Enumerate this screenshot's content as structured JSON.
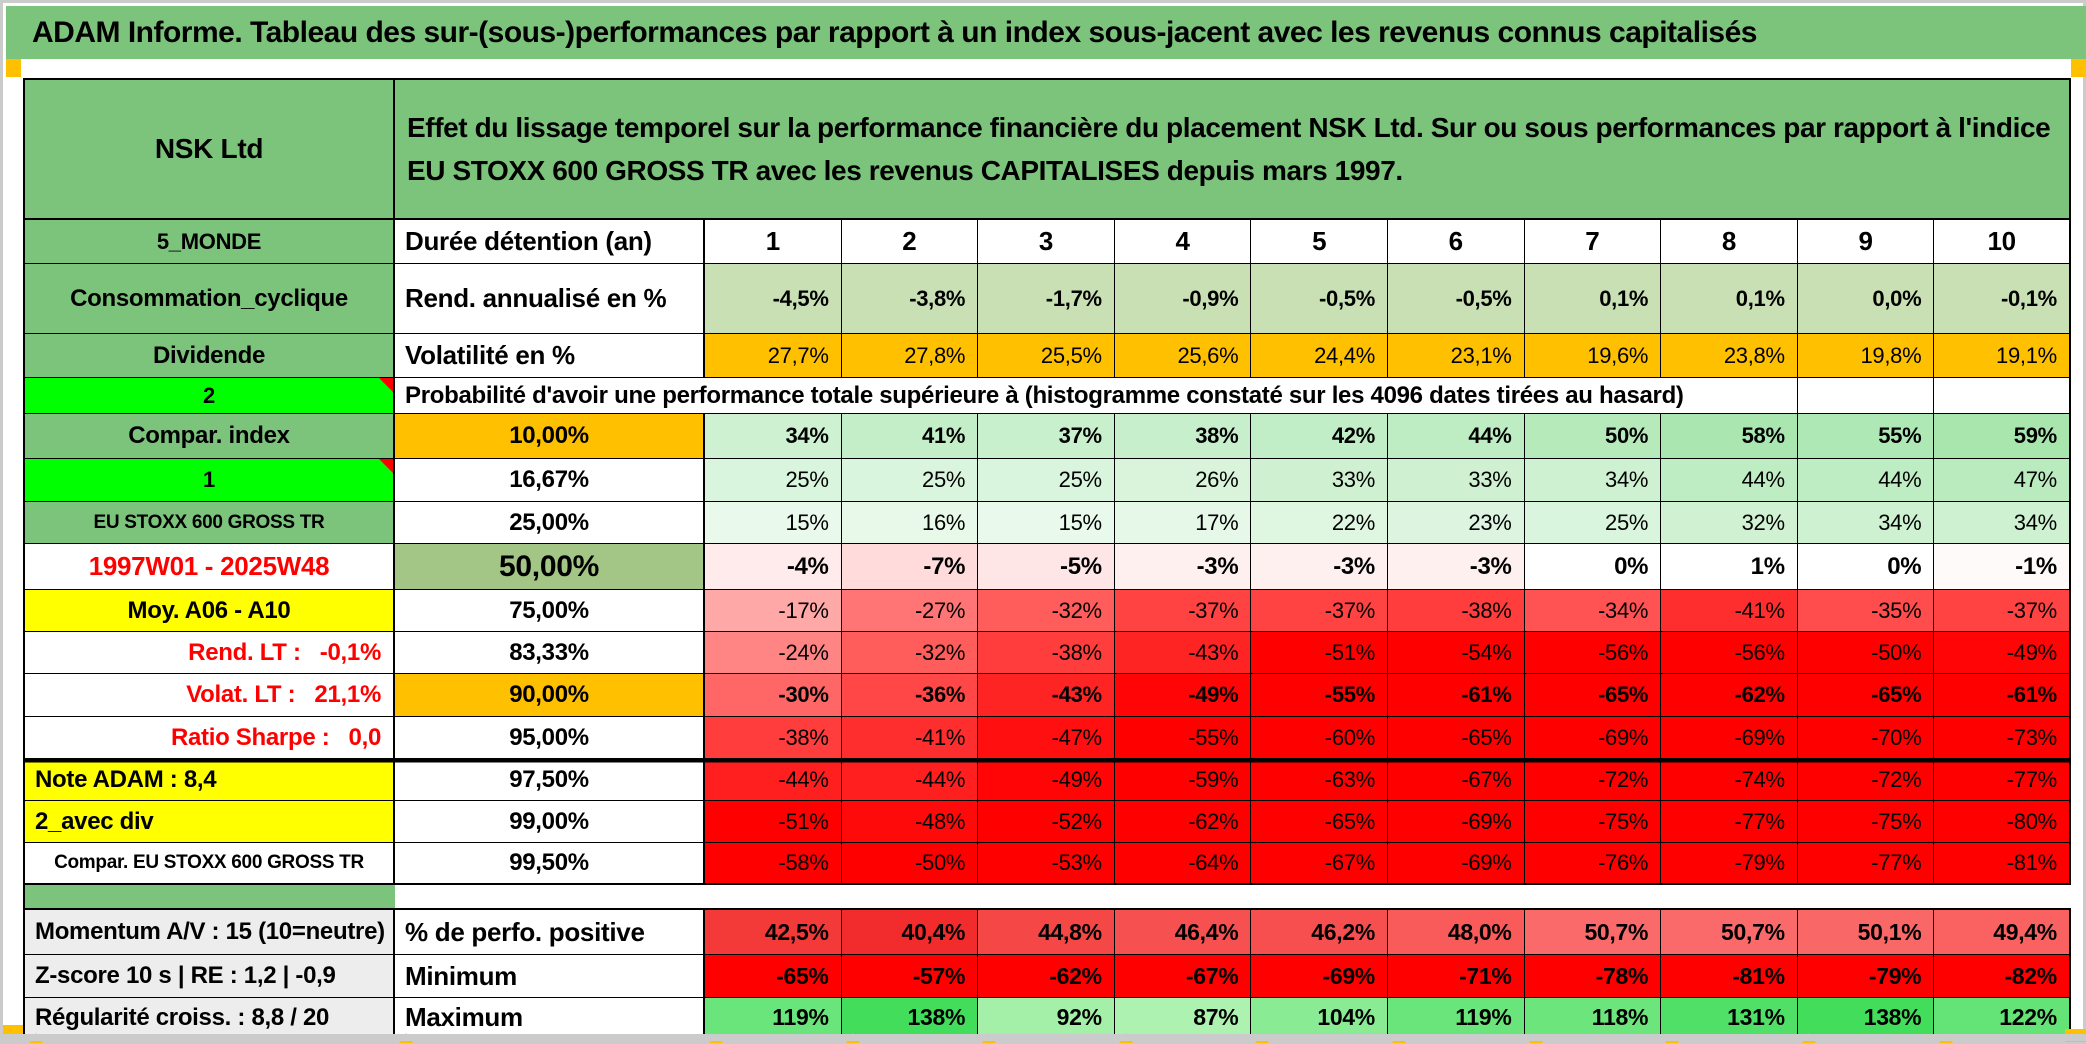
{
  "app": {
    "title": "ADAM Informe. Tableau des sur-(sous-)performances par rapport à un index sous-jacent avec les revenus connus capitalisés"
  },
  "header": {
    "instrument": "NSK Ltd",
    "description": "Effet du lissage temporel sur la performance financière du placement NSK Ltd. Sur ou sous performances par rapport à l'indice EU STOXX 600 GROSS TR avec les revenus CAPITALISES depuis mars 1997."
  },
  "palette": {
    "header_green": "#7CC47C",
    "bright_green": "#00FF00",
    "olive_green": "#A3C585",
    "light_green": "#C8E0B4",
    "orange": "#FFC000",
    "yellow": "#FFFF00",
    "red": "#FF0000",
    "label_gray": "#EDEDED",
    "red_text": "#FF0000"
  },
  "table": {
    "duration": {
      "label_a": "5_MONDE",
      "label_b": "Durée détention (an)",
      "values": [
        "1",
        "2",
        "3",
        "4",
        "5",
        "6",
        "7",
        "8",
        "9",
        "10"
      ]
    },
    "metrics": [
      {
        "label_a": "Consommation_cyclique",
        "label_b": "Rend. annualisé en %",
        "fill": "light_green",
        "bold": true,
        "values": [
          "-4,5%",
          "-3,8%",
          "-1,7%",
          "-0,9%",
          "-0,5%",
          "-0,5%",
          "0,1%",
          "0,1%",
          "0,0%",
          "-0,1%"
        ]
      },
      {
        "label_a": "Dividende",
        "label_b": "Volatilité en %",
        "fill": "orange",
        "bold": false,
        "values": [
          "27,7%",
          "27,8%",
          "25,5%",
          "25,6%",
          "24,4%",
          "23,1%",
          "19,6%",
          "23,8%",
          "19,8%",
          "19,1%"
        ]
      }
    ],
    "probability_header": {
      "label_a": "2",
      "has_comment": true,
      "text": "Probabilité d'avoir une performance totale supérieure à (histogramme constaté sur les 4096 dates tirées au hasard)"
    },
    "probability_rows": [
      {
        "label_a": "Compar. index",
        "a_style": "green",
        "percentile": "10,00%",
        "p_fill": "orange",
        "bold": true,
        "values": [
          "34%",
          "41%",
          "37%",
          "38%",
          "42%",
          "44%",
          "50%",
          "58%",
          "55%",
          "59%"
        ]
      },
      {
        "label_a": "1",
        "a_style": "bright_green",
        "has_comment": true,
        "percentile": "16,67%",
        "values": [
          "25%",
          "25%",
          "25%",
          "26%",
          "33%",
          "33%",
          "34%",
          "44%",
          "44%",
          "47%"
        ]
      },
      {
        "label_a": "EU STOXX 600 GROSS TR",
        "a_style": "green_small",
        "percentile": "25,00%",
        "values": [
          "15%",
          "16%",
          "15%",
          "17%",
          "22%",
          "23%",
          "25%",
          "32%",
          "34%",
          "34%"
        ]
      },
      {
        "label_a": "1997W01 - 2025W48",
        "a_style": "red_center",
        "percentile": "50,00%",
        "p_fill": "olive_green",
        "p_big": true,
        "bold": true,
        "values": [
          "-4%",
          "-7%",
          "-5%",
          "-3%",
          "-3%",
          "-3%",
          "0%",
          "1%",
          "0%",
          "-1%"
        ]
      },
      {
        "label_a": "Moy. A06 - A10",
        "a_style": "yellow_center",
        "percentile": "75,00%",
        "values": [
          "-17%",
          "-27%",
          "-32%",
          "-37%",
          "-37%",
          "-38%",
          "-34%",
          "-41%",
          "-35%",
          "-37%"
        ]
      },
      {
        "label_a": "Rend. LT :   -0,1%",
        "a_style": "red_right",
        "percentile": "83,33%",
        "values": [
          "-24%",
          "-32%",
          "-38%",
          "-43%",
          "-51%",
          "-54%",
          "-56%",
          "-56%",
          "-50%",
          "-49%"
        ]
      },
      {
        "label_a": "Volat. LT :   21,1%",
        "a_style": "red_right",
        "percentile": "90,00%",
        "p_fill": "orange",
        "bold": true,
        "values": [
          "-30%",
          "-36%",
          "-43%",
          "-49%",
          "-55%",
          "-61%",
          "-65%",
          "-62%",
          "-65%",
          "-61%"
        ]
      },
      {
        "label_a": "Ratio Sharpe :   0,0",
        "a_style": "red_right",
        "percentile": "95,00%",
        "values": [
          "-38%",
          "-41%",
          "-47%",
          "-55%",
          "-60%",
          "-65%",
          "-69%",
          "-69%",
          "-70%",
          "-73%"
        ]
      },
      {
        "label_a": "Note ADAM : 8,4",
        "a_style": "yellow_left",
        "percentile": "97,50%",
        "thick_top": true,
        "values": [
          "-44%",
          "-44%",
          "-49%",
          "-59%",
          "-63%",
          "-67%",
          "-72%",
          "-74%",
          "-72%",
          "-77%"
        ]
      },
      {
        "label_a": "2_avec div",
        "a_style": "yellow_left",
        "percentile": "99,00%",
        "values": [
          "-51%",
          "-48%",
          "-52%",
          "-62%",
          "-65%",
          "-69%",
          "-75%",
          "-77%",
          "-75%",
          "-80%"
        ]
      },
      {
        "label_a": "Compar. EU STOXX 600 GROSS TR",
        "a_style": "white_small",
        "percentile": "99,50%",
        "thick_bottom": true,
        "values": [
          "-58%",
          "-50%",
          "-53%",
          "-64%",
          "-67%",
          "-69%",
          "-76%",
          "-79%",
          "-77%",
          "-81%"
        ]
      }
    ],
    "summary_rows": [
      {
        "label_a": "Momentum A/V : 15 (10=neutre)",
        "label_b": "% de perfo. positive",
        "scale": "pos_red",
        "bold": true,
        "values": [
          "42,5%",
          "40,4%",
          "44,8%",
          "46,4%",
          "46,2%",
          "48,0%",
          "50,7%",
          "50,7%",
          "50,1%",
          "49,4%"
        ]
      },
      {
        "label_a": "Z-score 10 s | RE : 1,2 | -0,9",
        "label_b": "Minimum",
        "scale": "flat_red",
        "bold": true,
        "values": [
          "-65%",
          "-57%",
          "-62%",
          "-67%",
          "-69%",
          "-71%",
          "-78%",
          "-81%",
          "-79%",
          "-82%"
        ]
      },
      {
        "label_a": "Régularité croiss. : 8,8 / 20",
        "label_b": "Maximum",
        "scale": "green",
        "bold": true,
        "values": [
          "119%",
          "138%",
          "92%",
          "87%",
          "104%",
          "119%",
          "118%",
          "131%",
          "138%",
          "122%"
        ]
      }
    ]
  }
}
